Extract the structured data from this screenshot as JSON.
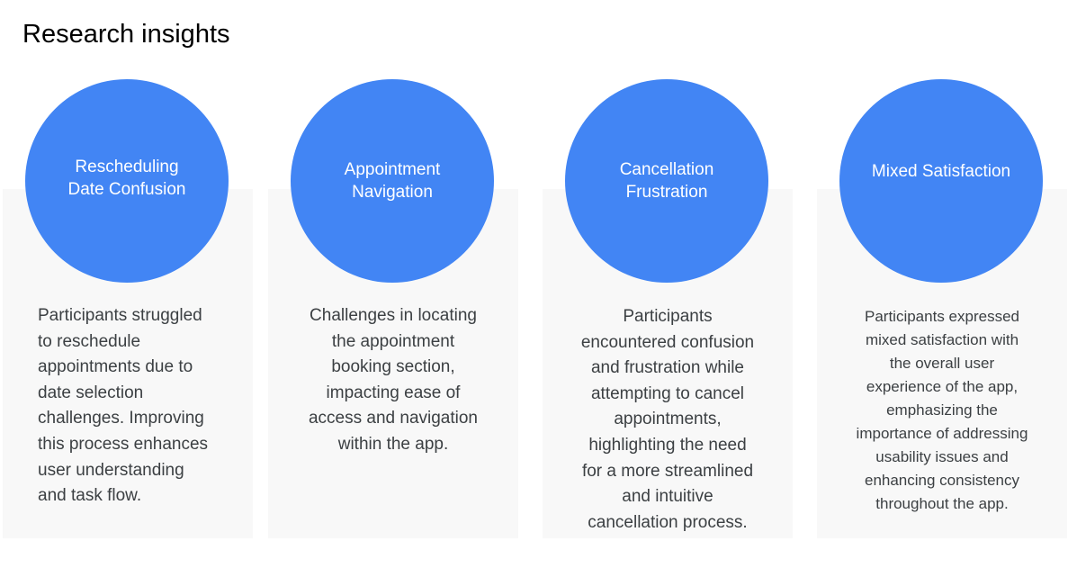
{
  "page": {
    "title": "Research insights"
  },
  "insights": [
    {
      "heading_lines": [
        "Rescheduling",
        "Date Confusion"
      ],
      "description_lines": [
        "Participants struggled",
        "to reschedule",
        "appointments due to",
        "date selection",
        "challenges. Improving",
        "this process enhances",
        "user understanding",
        "and task flow."
      ]
    },
    {
      "heading_lines": [
        "Appointment",
        "Navigation"
      ],
      "description_lines": [
        "Challenges in locating",
        "the appointment",
        "booking section,",
        "impacting ease of",
        "access and navigation",
        "within the app."
      ]
    },
    {
      "heading_lines": [
        "Cancellation",
        "Frustration"
      ],
      "description_lines": [
        "Participants",
        "encountered confusion",
        "and frustration while",
        "attempting to cancel",
        "appointments,",
        "highlighting the need",
        "for a more streamlined",
        "and intuitive",
        "cancellation process."
      ]
    },
    {
      "heading_lines": [
        "Mixed Satisfaction"
      ],
      "description_lines": [
        "Participants expressed",
        "mixed satisfaction with",
        "the overall user",
        "experience of the app,",
        "emphasizing the",
        "importance of addressing",
        "usability issues and",
        "enhancing consistency",
        "throughout the app."
      ]
    }
  ]
}
